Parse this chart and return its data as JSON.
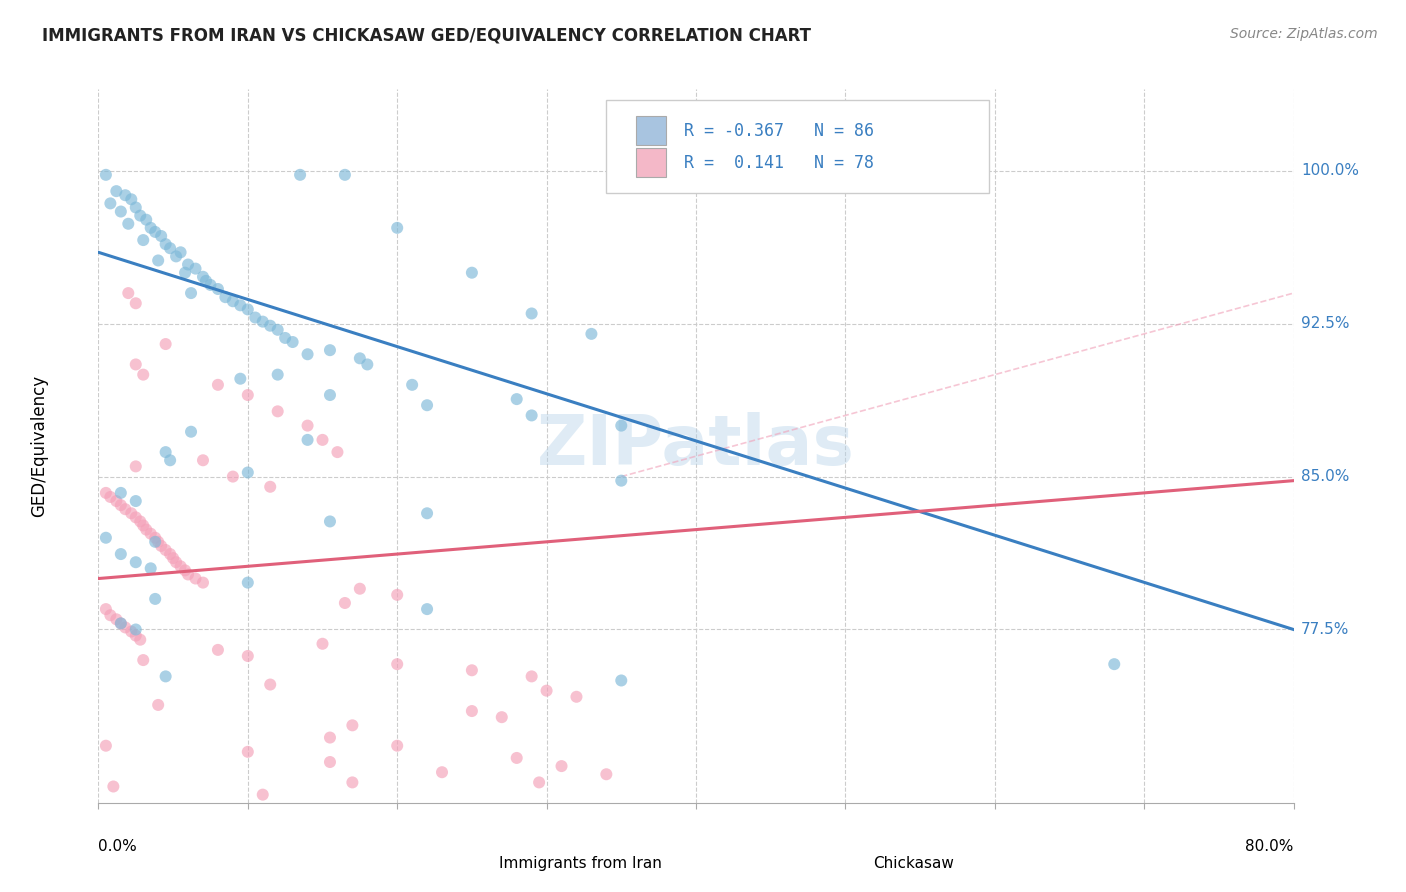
{
  "title": "IMMIGRANTS FROM IRAN VS CHICKASAW GED/EQUIVALENCY CORRELATION CHART",
  "source": "Source: ZipAtlas.com",
  "ylabel": "GED/Equivalency",
  "ytick_labels": [
    "100.0%",
    "92.5%",
    "85.0%",
    "77.5%"
  ],
  "ytick_values": [
    1.0,
    0.925,
    0.85,
    0.775
  ],
  "xlim": [
    0.0,
    0.8
  ],
  "ylim": [
    0.69,
    1.04
  ],
  "legend_R1": "R = -0.367",
  "legend_N1": "N = 86",
  "legend_R2": "R =  0.141",
  "legend_N2": "N = 78",
  "legend_color_blue": "#a8c4e0",
  "legend_color_pink": "#f4b8c8",
  "legend_text_color": "#3a7fc1",
  "watermark": "ZIPatlas",
  "blue_scatter_color": "#7db8d8",
  "pink_scatter_color": "#f4a0b8",
  "blue_line_color": "#3a7fc1",
  "pink_line_color": "#e0607a",
  "pink_dashed_color": "#f0a0b8",
  "blue_dots": [
    [
      0.005,
      0.998
    ],
    [
      0.135,
      0.998
    ],
    [
      0.165,
      0.998
    ],
    [
      0.012,
      0.99
    ],
    [
      0.018,
      0.988
    ],
    [
      0.022,
      0.986
    ],
    [
      0.008,
      0.984
    ],
    [
      0.025,
      0.982
    ],
    [
      0.015,
      0.98
    ],
    [
      0.028,
      0.978
    ],
    [
      0.032,
      0.976
    ],
    [
      0.02,
      0.974
    ],
    [
      0.035,
      0.972
    ],
    [
      0.2,
      0.972
    ],
    [
      0.038,
      0.97
    ],
    [
      0.042,
      0.968
    ],
    [
      0.03,
      0.966
    ],
    [
      0.045,
      0.964
    ],
    [
      0.048,
      0.962
    ],
    [
      0.055,
      0.96
    ],
    [
      0.052,
      0.958
    ],
    [
      0.04,
      0.956
    ],
    [
      0.06,
      0.954
    ],
    [
      0.065,
      0.952
    ],
    [
      0.058,
      0.95
    ],
    [
      0.25,
      0.95
    ],
    [
      0.07,
      0.948
    ],
    [
      0.072,
      0.946
    ],
    [
      0.075,
      0.944
    ],
    [
      0.08,
      0.942
    ],
    [
      0.062,
      0.94
    ],
    [
      0.085,
      0.938
    ],
    [
      0.09,
      0.936
    ],
    [
      0.095,
      0.934
    ],
    [
      0.1,
      0.932
    ],
    [
      0.29,
      0.93
    ],
    [
      0.105,
      0.928
    ],
    [
      0.11,
      0.926
    ],
    [
      0.115,
      0.924
    ],
    [
      0.12,
      0.922
    ],
    [
      0.33,
      0.92
    ],
    [
      0.125,
      0.918
    ],
    [
      0.13,
      0.916
    ],
    [
      0.155,
      0.912
    ],
    [
      0.14,
      0.91
    ],
    [
      0.175,
      0.908
    ],
    [
      0.18,
      0.905
    ],
    [
      0.12,
      0.9
    ],
    [
      0.095,
      0.898
    ],
    [
      0.21,
      0.895
    ],
    [
      0.155,
      0.89
    ],
    [
      0.28,
      0.888
    ],
    [
      0.22,
      0.885
    ],
    [
      0.29,
      0.88
    ],
    [
      0.35,
      0.875
    ],
    [
      0.062,
      0.872
    ],
    [
      0.14,
      0.868
    ],
    [
      0.045,
      0.862
    ],
    [
      0.048,
      0.858
    ],
    [
      0.1,
      0.852
    ],
    [
      0.35,
      0.848
    ],
    [
      0.015,
      0.842
    ],
    [
      0.025,
      0.838
    ],
    [
      0.22,
      0.832
    ],
    [
      0.155,
      0.828
    ],
    [
      0.005,
      0.82
    ],
    [
      0.038,
      0.818
    ],
    [
      0.015,
      0.812
    ],
    [
      0.025,
      0.808
    ],
    [
      0.035,
      0.805
    ],
    [
      0.1,
      0.798
    ],
    [
      0.038,
      0.79
    ],
    [
      0.22,
      0.785
    ],
    [
      0.015,
      0.778
    ],
    [
      0.025,
      0.775
    ],
    [
      0.68,
      0.758
    ],
    [
      0.045,
      0.752
    ],
    [
      0.35,
      0.75
    ]
  ],
  "pink_dots": [
    [
      0.02,
      0.94
    ],
    [
      0.025,
      0.935
    ],
    [
      0.045,
      0.915
    ],
    [
      0.025,
      0.905
    ],
    [
      0.03,
      0.9
    ],
    [
      0.08,
      0.895
    ],
    [
      0.1,
      0.89
    ],
    [
      0.12,
      0.882
    ],
    [
      0.14,
      0.875
    ],
    [
      0.15,
      0.868
    ],
    [
      0.16,
      0.862
    ],
    [
      0.07,
      0.858
    ],
    [
      0.025,
      0.855
    ],
    [
      0.09,
      0.85
    ],
    [
      0.115,
      0.845
    ],
    [
      0.005,
      0.842
    ],
    [
      0.008,
      0.84
    ],
    [
      0.012,
      0.838
    ],
    [
      0.015,
      0.836
    ],
    [
      0.018,
      0.834
    ],
    [
      0.022,
      0.832
    ],
    [
      0.025,
      0.83
    ],
    [
      0.028,
      0.828
    ],
    [
      0.03,
      0.826
    ],
    [
      0.032,
      0.824
    ],
    [
      0.035,
      0.822
    ],
    [
      0.038,
      0.82
    ],
    [
      0.04,
      0.818
    ],
    [
      0.042,
      0.816
    ],
    [
      0.045,
      0.814
    ],
    [
      0.048,
      0.812
    ],
    [
      0.05,
      0.81
    ],
    [
      0.052,
      0.808
    ],
    [
      0.055,
      0.806
    ],
    [
      0.058,
      0.804
    ],
    [
      0.06,
      0.802
    ],
    [
      0.065,
      0.8
    ],
    [
      0.07,
      0.798
    ],
    [
      0.175,
      0.795
    ],
    [
      0.2,
      0.792
    ],
    [
      0.165,
      0.788
    ],
    [
      0.005,
      0.785
    ],
    [
      0.008,
      0.782
    ],
    [
      0.012,
      0.78
    ],
    [
      0.015,
      0.778
    ],
    [
      0.018,
      0.776
    ],
    [
      0.022,
      0.774
    ],
    [
      0.025,
      0.772
    ],
    [
      0.028,
      0.77
    ],
    [
      0.15,
      0.768
    ],
    [
      0.08,
      0.765
    ],
    [
      0.1,
      0.762
    ],
    [
      0.03,
      0.76
    ],
    [
      0.2,
      0.758
    ],
    [
      0.25,
      0.755
    ],
    [
      0.29,
      0.752
    ],
    [
      0.115,
      0.748
    ],
    [
      0.3,
      0.745
    ],
    [
      0.32,
      0.742
    ],
    [
      0.04,
      0.738
    ],
    [
      0.25,
      0.735
    ],
    [
      0.27,
      0.732
    ],
    [
      0.17,
      0.728
    ],
    [
      0.155,
      0.722
    ],
    [
      0.2,
      0.718
    ],
    [
      0.28,
      0.712
    ],
    [
      0.31,
      0.708
    ],
    [
      0.34,
      0.704
    ],
    [
      0.295,
      0.7
    ],
    [
      0.005,
      0.718
    ],
    [
      0.1,
      0.715
    ],
    [
      0.155,
      0.71
    ],
    [
      0.23,
      0.705
    ],
    [
      0.17,
      0.7
    ],
    [
      0.01,
      0.698
    ],
    [
      0.11,
      0.694
    ]
  ],
  "blue_line": {
    "x0": 0.0,
    "y0": 0.96,
    "x1": 0.8,
    "y1": 0.775
  },
  "pink_line": {
    "x0": 0.0,
    "y0": 0.8,
    "x1": 0.8,
    "y1": 0.848
  },
  "pink_dashed_line": {
    "x0": 0.35,
    "y0": 0.85,
    "x1": 0.8,
    "y1": 0.94
  }
}
